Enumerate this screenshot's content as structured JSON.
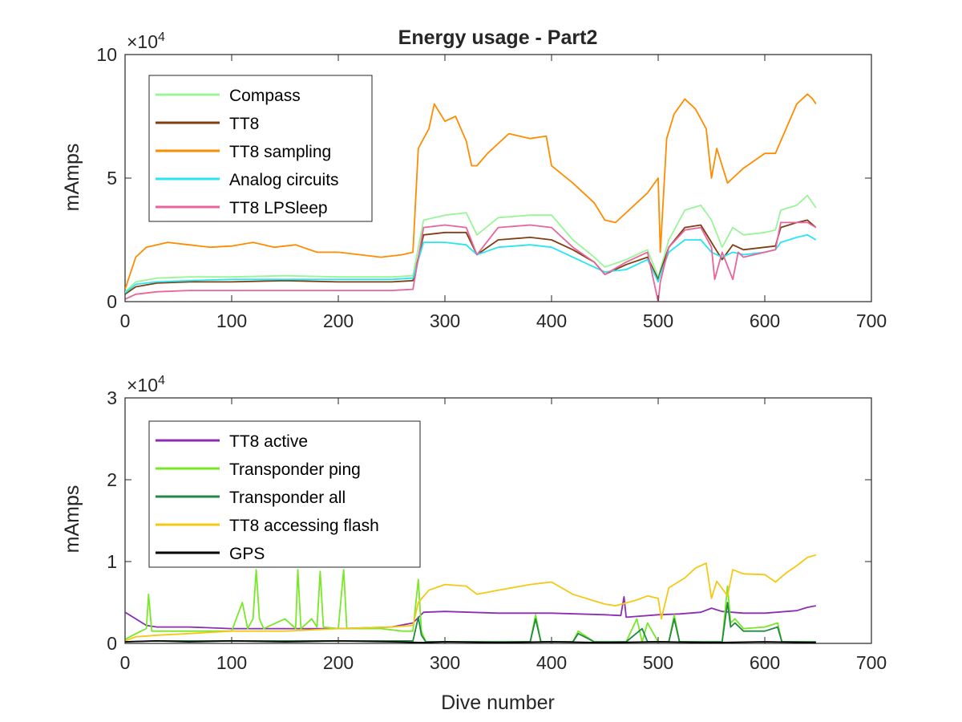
{
  "chart_data": [
    {
      "type": "line",
      "title": "Energy usage - Part2",
      "xlabel": "",
      "ylabel": "mAmps",
      "xlim": [
        0,
        700
      ],
      "ylim": [
        0,
        100000
      ],
      "y_exponent_label": "×10^4",
      "xticks": [
        "0",
        "100",
        "200",
        "300",
        "400",
        "500",
        "600",
        "700"
      ],
      "yticks": [
        "0",
        "5",
        "10"
      ],
      "legend": "top-left",
      "grid": false,
      "series": [
        {
          "name": "Compass",
          "color": "#98f598",
          "x": [
            0,
            10,
            30,
            60,
            100,
            150,
            200,
            250,
            270,
            280,
            300,
            320,
            330,
            350,
            380,
            400,
            420,
            440,
            450,
            470,
            490,
            500,
            502,
            510,
            525,
            540,
            550,
            560,
            570,
            580,
            600,
            610,
            615,
            630,
            640,
            648
          ],
          "y": [
            4000,
            8000,
            9500,
            10000,
            10000,
            10500,
            10000,
            10000,
            10500,
            33000,
            35000,
            36000,
            27000,
            34000,
            35000,
            35000,
            25000,
            18000,
            14000,
            17000,
            21000,
            10000,
            13000,
            25000,
            37000,
            39000,
            33000,
            22000,
            30000,
            27000,
            28000,
            29000,
            37000,
            39000,
            43000,
            38000
          ]
        },
        {
          "name": "TT8",
          "color": "#7f3f13",
          "x": [
            0,
            10,
            30,
            60,
            100,
            150,
            200,
            250,
            270,
            280,
            300,
            320,
            330,
            350,
            380,
            400,
            420,
            440,
            450,
            470,
            490,
            500,
            502,
            510,
            525,
            540,
            550,
            560,
            570,
            580,
            600,
            610,
            615,
            630,
            640,
            648
          ],
          "y": [
            3000,
            6000,
            7500,
            8000,
            8000,
            8500,
            8000,
            8000,
            8500,
            27000,
            28000,
            28000,
            19000,
            25000,
            26000,
            25000,
            21000,
            16000,
            11000,
            15000,
            18000,
            9000,
            12000,
            22000,
            30000,
            31000,
            24000,
            17000,
            23000,
            21000,
            22000,
            22500,
            30000,
            32000,
            33000,
            30000
          ]
        },
        {
          "name": "TT8 sampling",
          "color": "#ff8c00",
          "x": [
            0,
            10,
            20,
            40,
            60,
            80,
            100,
            120,
            140,
            160,
            180,
            200,
            220,
            240,
            260,
            270,
            275,
            285,
            290,
            300,
            310,
            320,
            325,
            330,
            340,
            350,
            360,
            380,
            395,
            400,
            420,
            440,
            450,
            460,
            480,
            490,
            500,
            502,
            508,
            515,
            525,
            535,
            545,
            550,
            555,
            565,
            570,
            580,
            600,
            610,
            620,
            630,
            640,
            645,
            648
          ],
          "y": [
            5000,
            18000,
            22000,
            24000,
            23000,
            22000,
            22500,
            24000,
            22000,
            23000,
            20000,
            20000,
            19000,
            18000,
            19000,
            20000,
            62000,
            70000,
            80000,
            73000,
            75000,
            65000,
            55000,
            55000,
            60000,
            64000,
            68000,
            66000,
            67000,
            55000,
            48000,
            40000,
            33000,
            32000,
            40000,
            44000,
            50000,
            20000,
            66000,
            76000,
            82000,
            78000,
            70000,
            50000,
            62000,
            48000,
            50000,
            54000,
            60000,
            60000,
            70000,
            80000,
            84000,
            82000,
            80000
          ]
        },
        {
          "name": "Analog circuits",
          "color": "#28e6f0",
          "x": [
            0,
            10,
            30,
            60,
            100,
            150,
            200,
            250,
            270,
            280,
            300,
            320,
            330,
            350,
            380,
            400,
            420,
            440,
            450,
            470,
            490,
            500,
            502,
            510,
            525,
            540,
            550,
            560,
            570,
            580,
            600,
            610,
            615,
            630,
            640,
            648
          ],
          "y": [
            3500,
            7000,
            8000,
            8500,
            9000,
            9000,
            9000,
            9000,
            9500,
            24000,
            24000,
            23000,
            19000,
            22000,
            23000,
            22000,
            18000,
            14000,
            12000,
            13000,
            17000,
            8000,
            11000,
            20000,
            25000,
            25000,
            20000,
            18000,
            20000,
            19000,
            20000,
            21000,
            24000,
            26000,
            27000,
            25000
          ]
        },
        {
          "name": "TT8 LPSleep",
          "color": "#e8649c",
          "x": [
            0,
            10,
            30,
            60,
            100,
            150,
            200,
            250,
            270,
            280,
            300,
            320,
            330,
            350,
            380,
            400,
            420,
            440,
            450,
            470,
            490,
            500,
            502,
            510,
            525,
            540,
            550,
            553,
            560,
            570,
            575,
            580,
            600,
            610,
            615,
            630,
            640,
            648
          ],
          "y": [
            1000,
            3000,
            4000,
            4500,
            4500,
            4500,
            4500,
            4500,
            5000,
            30000,
            31000,
            30000,
            19000,
            30000,
            31000,
            30000,
            22000,
            16000,
            11000,
            16000,
            20000,
            0,
            8000,
            22000,
            29000,
            30000,
            22000,
            9000,
            20000,
            9000,
            20000,
            18000,
            20000,
            21000,
            32000,
            32000,
            32000,
            30000
          ]
        }
      ]
    },
    {
      "type": "line",
      "title": "",
      "xlabel": "Dive number",
      "ylabel": "mAmps",
      "xlim": [
        0,
        700
      ],
      "ylim": [
        0,
        30000
      ],
      "y_exponent_label": "×10^4",
      "xticks": [
        "0",
        "100",
        "200",
        "300",
        "400",
        "500",
        "600",
        "700"
      ],
      "yticks": [
        "0",
        "1",
        "2",
        "3"
      ],
      "legend": "top-left",
      "grid": false,
      "series": [
        {
          "name": "TT8 active",
          "color": "#8c2eb4",
          "x": [
            0,
            10,
            20,
            30,
            60,
            100,
            150,
            200,
            250,
            270,
            280,
            300,
            350,
            400,
            450,
            465,
            468,
            470,
            500,
            520,
            540,
            550,
            560,
            580,
            600,
            630,
            640,
            648
          ],
          "y": [
            3800,
            3000,
            2200,
            2000,
            2000,
            1800,
            1800,
            1800,
            2000,
            2500,
            3800,
            3900,
            3700,
            3700,
            3500,
            3400,
            5700,
            3200,
            3500,
            3600,
            3800,
            4300,
            3900,
            3700,
            3700,
            4000,
            4400,
            4600
          ]
        },
        {
          "name": "Transponder ping",
          "color": "#78e828",
          "x": [
            0,
            15,
            20,
            22,
            25,
            30,
            60,
            100,
            110,
            115,
            120,
            123,
            126,
            130,
            150,
            160,
            162,
            165,
            175,
            180,
            183,
            186,
            200,
            205,
            208,
            215,
            240,
            260,
            270,
            275,
            278,
            282,
            300,
            350,
            380,
            385,
            390,
            420,
            425,
            440,
            470,
            480,
            485,
            490,
            500,
            510,
            515,
            520,
            530,
            560,
            565,
            568,
            572,
            580,
            600,
            612,
            616,
            648
          ],
          "y": [
            500,
            1500,
            1800,
            6000,
            1500,
            1500,
            1500,
            1500,
            5000,
            1800,
            3000,
            9000,
            3000,
            1800,
            3000,
            1800,
            9000,
            1800,
            3000,
            2000,
            8800,
            2000,
            1800,
            9000,
            1800,
            1800,
            1800,
            1500,
            1500,
            7800,
            1500,
            200,
            200,
            200,
            200,
            3500,
            200,
            200,
            1500,
            200,
            200,
            3000,
            200,
            2500,
            200,
            200,
            3500,
            200,
            200,
            200,
            7000,
            2500,
            3000,
            1800,
            2000,
            2500,
            200,
            200
          ]
        },
        {
          "name": "Transponder all",
          "color": "#228a44",
          "x": [
            0,
            30,
            60,
            100,
            150,
            200,
            250,
            270,
            275,
            278,
            282,
            300,
            350,
            380,
            385,
            390,
            420,
            425,
            440,
            470,
            485,
            490,
            500,
            510,
            515,
            520,
            530,
            560,
            565,
            568,
            572,
            580,
            600,
            612,
            616,
            648
          ],
          "y": [
            200,
            300,
            300,
            300,
            300,
            300,
            300,
            300,
            3200,
            1000,
            200,
            200,
            200,
            200,
            3000,
            200,
            200,
            1200,
            200,
            200,
            1800,
            200,
            200,
            200,
            3000,
            200,
            200,
            200,
            5000,
            2000,
            2500,
            1500,
            1500,
            2000,
            200,
            200
          ]
        },
        {
          "name": "TT8 accessing flash",
          "color": "#f5c814",
          "x": [
            0,
            10,
            30,
            60,
            100,
            150,
            200,
            250,
            270,
            275,
            285,
            300,
            320,
            330,
            350,
            380,
            400,
            420,
            440,
            450,
            460,
            480,
            490,
            500,
            503,
            510,
            525,
            535,
            545,
            550,
            555,
            565,
            570,
            580,
            600,
            610,
            620,
            630,
            640,
            648
          ],
          "y": [
            300,
            800,
            1000,
            1200,
            1500,
            1500,
            1800,
            2000,
            2200,
            5000,
            6500,
            7200,
            7000,
            6000,
            6500,
            7200,
            7500,
            6000,
            5200,
            4800,
            4600,
            5300,
            5800,
            5500,
            3000,
            6800,
            8000,
            9200,
            9800,
            5500,
            7600,
            5800,
            9000,
            8500,
            8400,
            7500,
            8600,
            9500,
            10500,
            10800
          ]
        },
        {
          "name": "GPS",
          "color": "#000000",
          "x": [
            0,
            30,
            60,
            100,
            150,
            200,
            250,
            280,
            300,
            350,
            400,
            450,
            500,
            550,
            600,
            648
          ],
          "y": [
            200,
            300,
            200,
            300,
            200,
            300,
            200,
            100,
            200,
            100,
            200,
            100,
            200,
            100,
            200,
            100
          ]
        }
      ]
    }
  ]
}
